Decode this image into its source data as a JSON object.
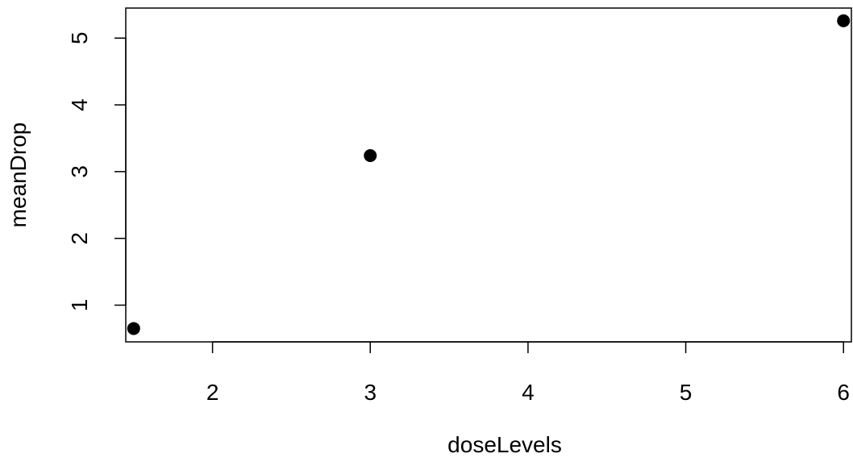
{
  "chart_data": {
    "type": "scatter",
    "title": "",
    "xlabel": "doseLevels",
    "ylabel": "meanDrop",
    "xlim": [
      1.45,
      6.05
    ],
    "ylim": [
      0.45,
      5.45
    ],
    "xticks": [
      2,
      3,
      4,
      5,
      6
    ],
    "yticks": [
      1,
      2,
      3,
      4,
      5
    ],
    "x": [
      1.5,
      3,
      6
    ],
    "y": [
      0.65,
      3.24,
      5.26
    ],
    "grid": false,
    "legend": null,
    "marker": "filled-circle",
    "color": "#000000"
  }
}
